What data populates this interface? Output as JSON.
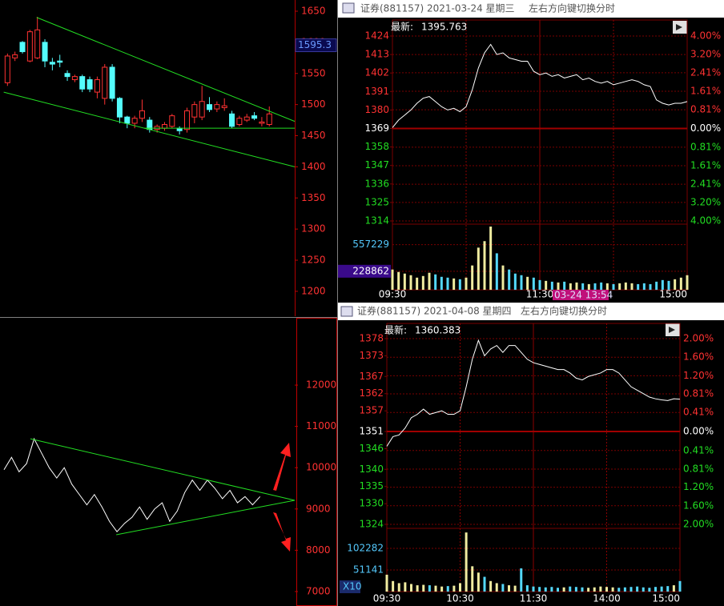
{
  "chart_data": [
    {
      "type": "candlestick",
      "series": [
        {
          "open": [
            1535,
            1575,
            1600,
            1570,
            1575,
            1600,
            1568,
            1570,
            1550,
            1540,
            1545,
            1540,
            1520,
            1510,
            1560,
            1510,
            1480,
            1470,
            1478,
            1475,
            1460,
            1462,
            1465,
            1462,
            1460,
            1480,
            1480,
            1500,
            1493,
            1495,
            1485,
            1468,
            1475,
            1482,
            1470,
            1468
          ],
          "high": [
            1582,
            1585,
            1602,
            1620,
            1641,
            1605,
            1575,
            1580,
            1555,
            1548,
            1548,
            1545,
            1545,
            1565,
            1565,
            1512,
            1482,
            1482,
            1508,
            1480,
            1468,
            1472,
            1485,
            1465,
            1495,
            1505,
            1530,
            1512,
            1505,
            1510,
            1490,
            1482,
            1485,
            1488,
            1480,
            1497
          ],
          "low": [
            1530,
            1570,
            1582,
            1568,
            1573,
            1560,
            1555,
            1560,
            1538,
            1536,
            1520,
            1520,
            1510,
            1500,
            1505,
            1470,
            1462,
            1462,
            1472,
            1455,
            1455,
            1458,
            1462,
            1452,
            1455,
            1470,
            1475,
            1488,
            1488,
            1490,
            1462,
            1465,
            1472,
            1475,
            1465,
            1465
          ],
          "close": [
            1578,
            1580,
            1585,
            1617,
            1620,
            1570,
            1565,
            1568,
            1545,
            1545,
            1525,
            1525,
            1540,
            1560,
            1510,
            1480,
            1470,
            1478,
            1490,
            1460,
            1465,
            1468,
            1482,
            1458,
            1490,
            1500,
            1505,
            1492,
            1500,
            1498,
            1465,
            1478,
            1480,
            1478,
            1472,
            1485
          ]
        }
      ],
      "up_color": "#ff3232",
      "down_color": "#54fcfc",
      "xlim": [
        -1,
        38.4
      ],
      "ylim": [
        1160,
        1668
      ],
      "yticks": [
        1200,
        1250,
        1300,
        1350,
        1400,
        1450,
        1500,
        1550,
        1600,
        1650
      ],
      "last_value": 1595.3,
      "trendlines": [
        {
          "x": [
            3.9,
            38.4
          ],
          "y": [
            1640,
            1473
          ],
          "color": "#22dd22"
        },
        {
          "x": [
            -0.5,
            38.4
          ],
          "y": [
            1520,
            1400
          ],
          "color": "#22dd22"
        },
        {
          "x": [
            18.3,
            38.4
          ],
          "y": [
            1462,
            1462
          ],
          "color": "#22dd22"
        }
      ]
    },
    {
      "type": "line",
      "values": [
        9950,
        10250,
        9900,
        10100,
        10700,
        10350,
        10000,
        9750,
        10000,
        9600,
        9350,
        9100,
        9350,
        9050,
        8700,
        8450,
        8650,
        8800,
        9050,
        8750,
        9000,
        9150,
        8700,
        8950,
        9400,
        9700,
        9450,
        9700,
        9500,
        9250,
        9450,
        9150,
        9300,
        9100,
        9300
      ],
      "color": "#ffffff",
      "xlim": [
        0,
        38.6
      ],
      "ylim": [
        6650,
        13630
      ],
      "yticks": [
        7000,
        8000,
        9000,
        10000,
        11000,
        12000
      ],
      "trendlines": [
        {
          "x": [
            3.5,
            38.6
          ],
          "y": [
            10700,
            9210
          ],
          "color": "#22dd22"
        },
        {
          "x": [
            14.9,
            38.6
          ],
          "y": [
            8376,
            9210
          ],
          "color": "#22dd22"
        }
      ]
    },
    {
      "type": "intraday",
      "title": "证券(881157) 2021-03-24 星期三",
      "hint": "左右方向键切换分时",
      "latest_label": "最新:",
      "latest": 1395.763,
      "categories": [
        "09:30",
        null,
        null,
        null,
        null,
        null,
        null,
        null,
        null,
        null,
        null,
        null,
        null,
        null,
        null,
        null,
        null,
        null,
        null,
        null,
        null,
        null,
        null,
        null,
        "11:30",
        null,
        null,
        null,
        null,
        null,
        null,
        null,
        null,
        null,
        null,
        null,
        null,
        null,
        null,
        null,
        null,
        null,
        null,
        null,
        null,
        null,
        null,
        null,
        "15:00"
      ],
      "values": [
        1369.5,
        1374,
        1377,
        1380,
        1384,
        1387,
        1388,
        1385,
        1382,
        1380,
        1381,
        1379,
        1382,
        1392,
        1405,
        1414,
        1419,
        1413,
        1414,
        1411,
        1410,
        1409,
        1409,
        1403,
        1401,
        1402,
        1400,
        1401,
        1399,
        1400,
        1401,
        1398,
        1399,
        1397,
        1396,
        1397,
        1395,
        1396,
        1397,
        1398,
        1397,
        1395,
        1394,
        1386,
        1384,
        1383,
        1384,
        1384,
        1385
      ],
      "volume": [
        250000,
        220000,
        200000,
        180000,
        150000,
        170000,
        210000,
        190000,
        160000,
        150000,
        140000,
        130000,
        150000,
        300000,
        520000,
        600000,
        780000,
        450000,
        300000,
        250000,
        200000,
        180000,
        160000,
        150000,
        120000,
        110000,
        100000,
        90000,
        100000,
        80000,
        90000,
        80000,
        70000,
        80000,
        90000,
        80000,
        70000,
        80000,
        90000,
        80000,
        70000,
        80000,
        70000,
        100000,
        120000,
        110000,
        130000,
        150000,
        180000
      ],
      "color": "#ffffff",
      "up_color": "#f0eca0",
      "down_color": "#54d8fc",
      "ylim": [
        1314,
        1424
      ],
      "yticks": [
        1424,
        1413,
        1402,
        1391,
        1380,
        1369,
        1358,
        1347,
        1336,
        1325,
        1314
      ],
      "y2lim": [
        -4.0,
        4.0
      ],
      "y2ticks": [
        {
          "value": 4.0,
          "label": "4.00%"
        },
        {
          "value": 3.2,
          "label": "3.20%"
        },
        {
          "value": 2.41,
          "label": "2.41%"
        },
        {
          "value": 1.61,
          "label": "1.61%"
        },
        {
          "value": 0.81,
          "label": "0.81%"
        },
        {
          "value": 0,
          "label": "0.00%"
        },
        {
          "value": -0.81,
          "label": "0.81%"
        },
        {
          "value": -1.61,
          "label": "1.61%"
        },
        {
          "value": -2.41,
          "label": "2.41%"
        },
        {
          "value": -3.2,
          "label": "3.20%"
        },
        {
          "value": -4.0,
          "label": "4.00%"
        }
      ],
      "volume_ylim": [
        0,
        790000
      ],
      "volume_ticks": [
        228862,
        557229
      ],
      "cursor_label": "03-24 13:54"
    },
    {
      "type": "intraday",
      "title": "证券(881157) 2021-04-08 星期四",
      "hint": "左右方向键切换分时",
      "latest_label": "最新:",
      "latest": 1360.383,
      "categories": [
        "09:30",
        null,
        null,
        null,
        null,
        null,
        null,
        null,
        null,
        null,
        null,
        null,
        "10:30",
        null,
        null,
        null,
        null,
        null,
        null,
        null,
        null,
        null,
        null,
        null,
        "11:30",
        null,
        null,
        null,
        null,
        null,
        null,
        null,
        null,
        null,
        null,
        null,
        "14:00",
        null,
        null,
        null,
        null,
        null,
        null,
        null,
        null,
        null,
        null,
        null,
        "15:00"
      ],
      "values": [
        1346.7,
        1349.5,
        1350,
        1352,
        1355,
        1356,
        1357.5,
        1356,
        1356.5,
        1357,
        1356,
        1356,
        1357,
        1364,
        1372,
        1377.5,
        1373,
        1375,
        1376,
        1374,
        1376,
        1376,
        1374,
        1372,
        1371,
        1370.5,
        1370,
        1369.5,
        1369,
        1369,
        1368,
        1366.5,
        1366,
        1367,
        1367.5,
        1368,
        1369,
        1369,
        1368,
        1366,
        1364,
        1363,
        1362,
        1361,
        1360.5,
        1360.2,
        1360,
        1360.5,
        1360.4
      ],
      "volume": [
        40000,
        25000,
        20000,
        22000,
        18000,
        15000,
        16000,
        15000,
        14000,
        12000,
        13000,
        14000,
        20000,
        140000,
        60000,
        45000,
        35000,
        25000,
        20000,
        18000,
        15000,
        14000,
        55000,
        15000,
        12000,
        11000,
        10000,
        11000,
        9000,
        10000,
        12000,
        11000,
        10000,
        9000,
        10000,
        12000,
        11000,
        10000,
        9000,
        10000,
        11000,
        12000,
        10000,
        9000,
        11000,
        12000,
        13000,
        15000,
        25000
      ],
      "color": "#ffffff",
      "up_color": "#f0eca0",
      "down_color": "#54d8fc",
      "ylim": [
        1324,
        1378
      ],
      "yticks": [
        1378,
        1373,
        1367,
        1362,
        1357,
        1351,
        1346,
        1340,
        1335,
        1330,
        1324
      ],
      "y2lim": [
        -2.0,
        2.0
      ],
      "y2ticks": [
        {
          "value": 2.0,
          "label": "2.00%"
        },
        {
          "value": 1.6,
          "label": "1.60%"
        },
        {
          "value": 1.2,
          "label": "1.20%"
        },
        {
          "value": 0.81,
          "label": "0.81%"
        },
        {
          "value": 0.41,
          "label": "0.41%"
        },
        {
          "value": 0,
          "label": "0.00%"
        },
        {
          "value": -0.41,
          "label": "0.41%"
        },
        {
          "value": -0.81,
          "label": "0.81%"
        },
        {
          "value": -1.2,
          "label": "1.20%"
        },
        {
          "value": -1.6,
          "label": "1.60%"
        },
        {
          "value": -2.0,
          "label": "2.00%"
        }
      ],
      "volume_ylim": [
        0,
        146000
      ],
      "volume_ticks": [
        51141,
        102282
      ],
      "volume_unit": "X10"
    }
  ]
}
